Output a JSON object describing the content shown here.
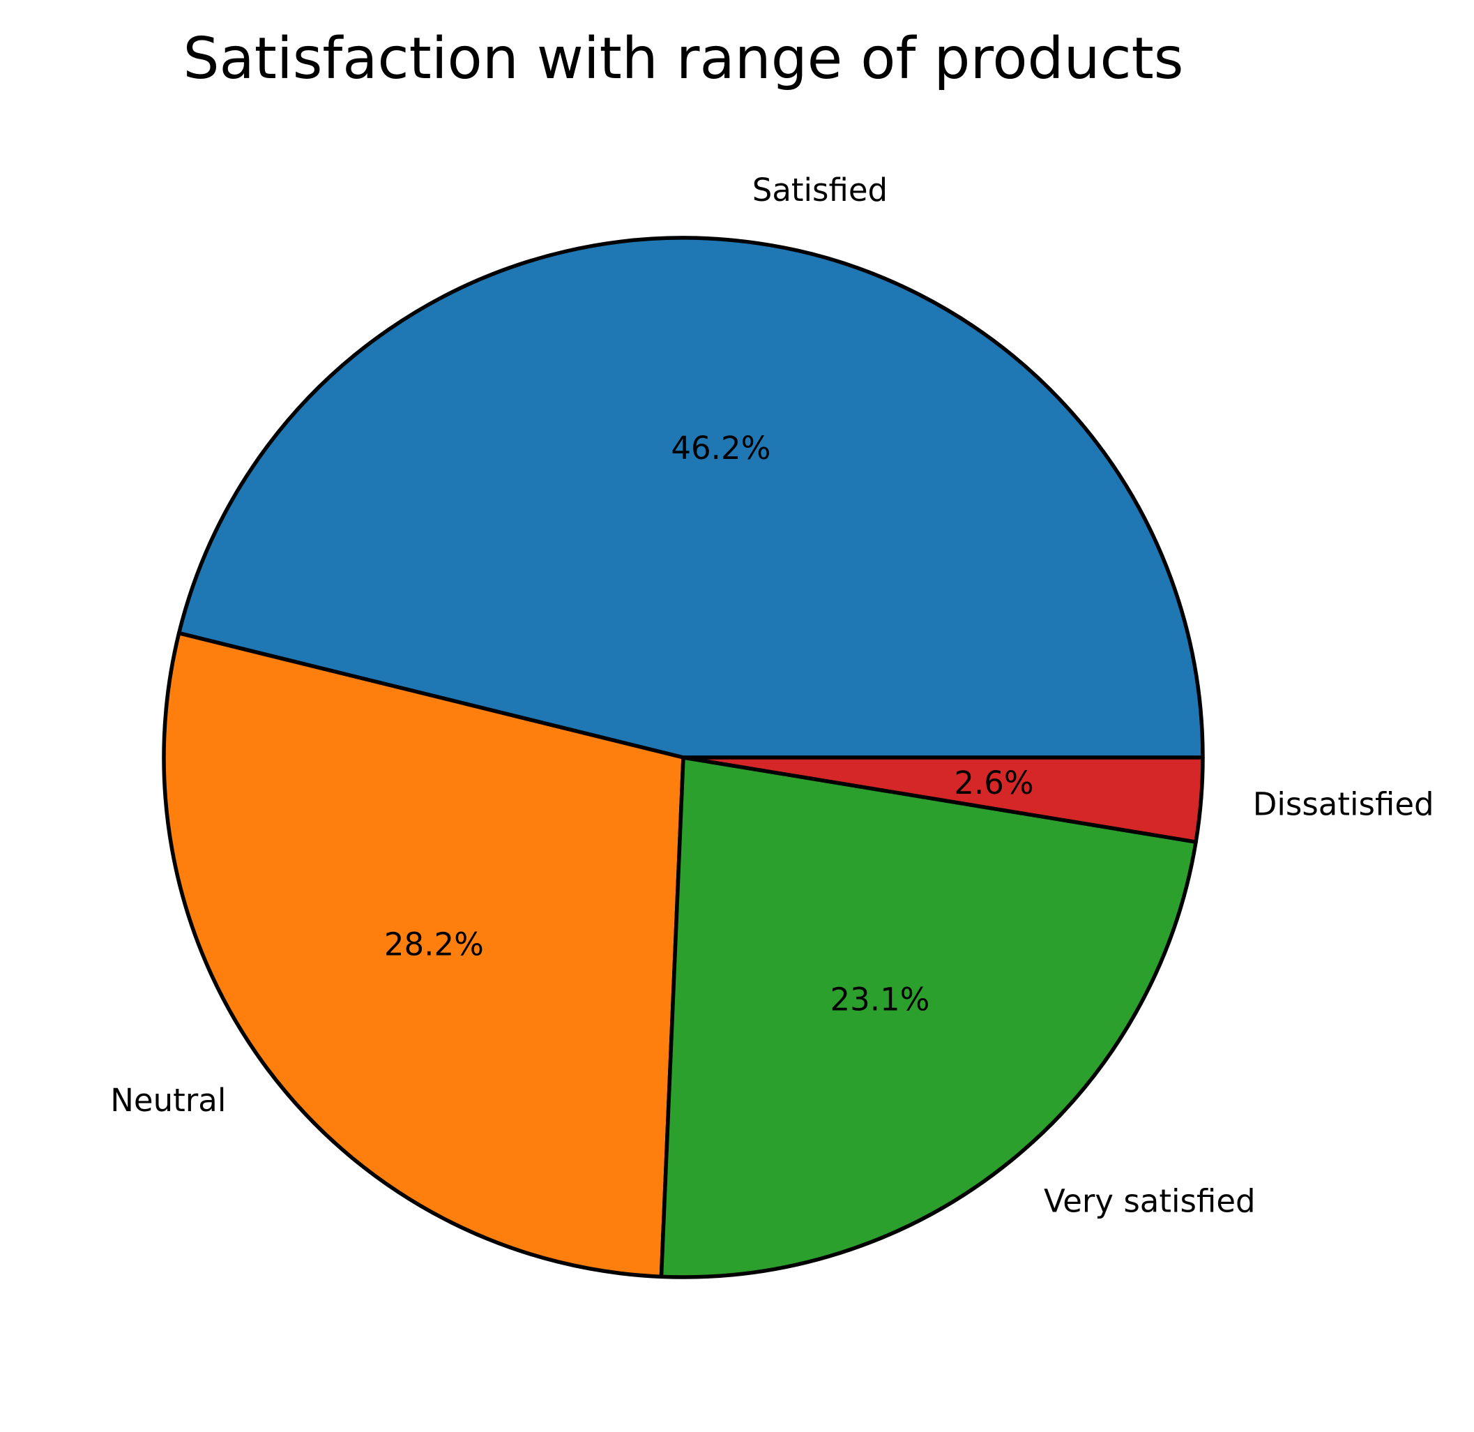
{
  "chart_data": {
    "type": "pie",
    "title": "Satisfaction with range of products",
    "start_angle_deg": 0,
    "direction": "counterclockwise",
    "edge_color": "#000000",
    "slices": [
      {
        "label": "Satisfied",
        "value": 46.2,
        "pct_label": "46.2%",
        "color": "#1f77b4"
      },
      {
        "label": "Neutral",
        "value": 28.2,
        "pct_label": "28.2%",
        "color": "#ff7f0e"
      },
      {
        "label": "Very satisfied",
        "value": 23.1,
        "pct_label": "23.1%",
        "color": "#2ca02c"
      },
      {
        "label": "Dissatisfied",
        "value": 2.6,
        "pct_label": "2.6%",
        "color": "#d62728"
      }
    ]
  }
}
